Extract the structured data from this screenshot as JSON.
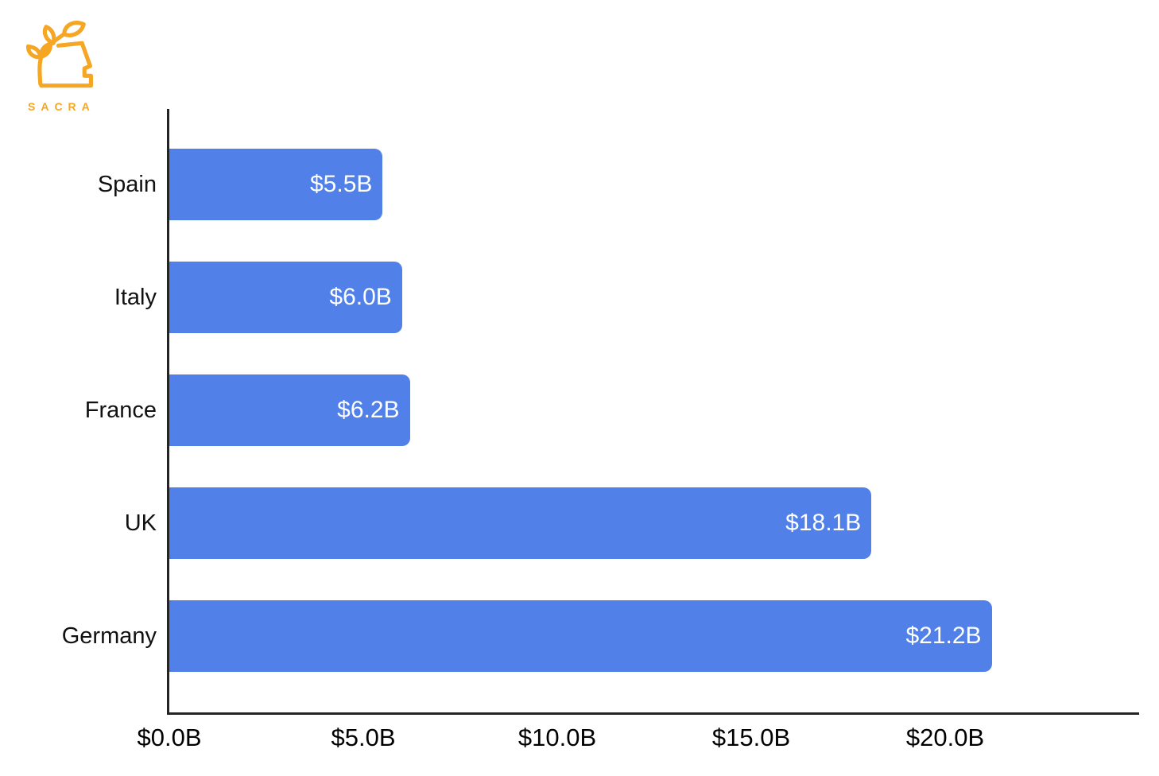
{
  "brand": {
    "name": "SACRA",
    "color": "#F5A623"
  },
  "chart_data": {
    "type": "bar",
    "orientation": "horizontal",
    "categories": [
      "Spain",
      "Italy",
      "France",
      "UK",
      "Germany"
    ],
    "values": [
      5.5,
      6.0,
      6.2,
      18.1,
      21.2
    ],
    "bar_labels": [
      "$5.5B",
      "$6.0B",
      "$6.2B",
      "$18.1B",
      "$21.2B"
    ],
    "x_ticks": {
      "values": [
        0,
        5,
        10,
        15,
        20
      ],
      "labels": [
        "$0.0B",
        "$5.0B",
        "$10.0B",
        "$15.0B",
        "$20.0B"
      ]
    },
    "xlim": [
      0,
      25
    ],
    "grid": false,
    "legend": false,
    "colors": {
      "bar": "#5181E8",
      "bar_label": "#FFFFFF",
      "axis": "#242424",
      "tick_label": "#000000",
      "category_label": "#111111"
    }
  }
}
